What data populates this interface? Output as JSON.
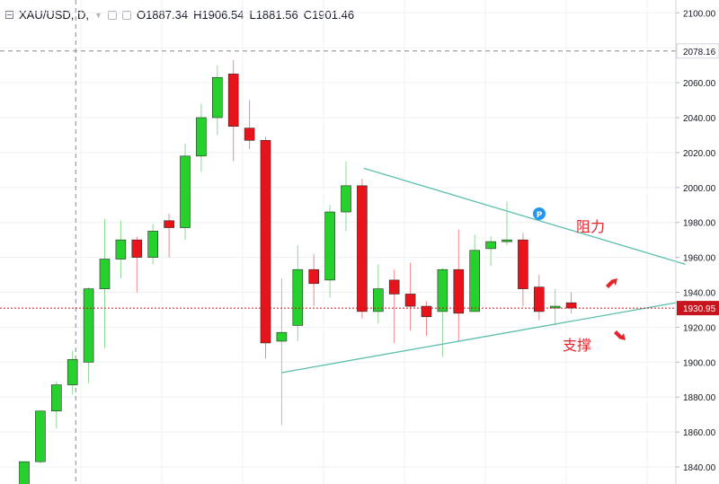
{
  "header": {
    "symbol": "XAU/USD, D,",
    "open_label": "O",
    "open": "1887.34",
    "high_label": "H",
    "high": "1906.54",
    "low_label": "L",
    "low": "1881.56",
    "close_label": "C",
    "close": "1901.46"
  },
  "chart_data": {
    "type": "candlestick",
    "y_range": [
      1830,
      2105
    ],
    "y_ticks": [
      "1840.00",
      "1860.00",
      "1880.00",
      "1900.00",
      "1920.00",
      "1940.00",
      "1960.00",
      "1980.00",
      "2000.00",
      "2020.00",
      "2040.00",
      "2060.00",
      "2080.00",
      "2100.00"
    ],
    "crosshair_price": "2078.16",
    "last_price": "1930.95",
    "colors": {
      "up": "#26d02d",
      "down": "#e8131b",
      "trendline": "#5cbfae",
      "last_price": "#c8141c",
      "annotation": "#e5242c"
    },
    "candles": [
      {
        "o": 1826,
        "h": 1843,
        "l": 1820,
        "c": 1843
      },
      {
        "o": 1843,
        "h": 1872,
        "l": 1842,
        "c": 1872
      },
      {
        "o": 1872,
        "h": 1889,
        "l": 1862,
        "c": 1887
      },
      {
        "o": 1887,
        "h": 1906.5,
        "l": 1881.5,
        "c": 1901.5
      },
      {
        "o": 1900,
        "h": 1943,
        "l": 1888,
        "c": 1942
      },
      {
        "o": 1942,
        "h": 1982,
        "l": 1908,
        "c": 1959
      },
      {
        "o": 1959,
        "h": 1981,
        "l": 1948,
        "c": 1970
      },
      {
        "o": 1970,
        "h": 1972,
        "l": 1940,
        "c": 1960
      },
      {
        "o": 1960,
        "h": 1979,
        "l": 1956,
        "c": 1975
      },
      {
        "o": 1981,
        "h": 1985,
        "l": 1960,
        "c": 1977
      },
      {
        "o": 1977,
        "h": 2025,
        "l": 1970,
        "c": 2018
      },
      {
        "o": 2018,
        "h": 2048,
        "l": 2009,
        "c": 2040
      },
      {
        "o": 2040,
        "h": 2070,
        "l": 2030,
        "c": 2063
      },
      {
        "o": 2065,
        "h": 2073,
        "l": 2015,
        "c": 2035
      },
      {
        "o": 2034,
        "h": 2050,
        "l": 2022,
        "c": 2027
      },
      {
        "o": 2027,
        "h": 2029,
        "l": 1902,
        "c": 1911
      },
      {
        "o": 1912,
        "h": 1948,
        "l": 1864,
        "c": 1917
      },
      {
        "o": 1921,
        "h": 1967,
        "l": 1912,
        "c": 1953
      },
      {
        "o": 1953,
        "h": 1962,
        "l": 1932,
        "c": 1945
      },
      {
        "o": 1947,
        "h": 1990,
        "l": 1937,
        "c": 1986
      },
      {
        "o": 1986,
        "h": 2015,
        "l": 1975,
        "c": 2001
      },
      {
        "o": 2001,
        "h": 2005,
        "l": 1925,
        "c": 1929
      },
      {
        "o": 1929,
        "h": 1956,
        "l": 1922,
        "c": 1942
      },
      {
        "o": 1947,
        "h": 1953,
        "l": 1911,
        "c": 1939
      },
      {
        "o": 1939,
        "h": 1957,
        "l": 1918,
        "c": 1932
      },
      {
        "o": 1932,
        "h": 1935,
        "l": 1915,
        "c": 1926
      },
      {
        "o": 1929,
        "h": 1954,
        "l": 1903,
        "c": 1953
      },
      {
        "o": 1953,
        "h": 1976,
        "l": 1912,
        "c": 1928
      },
      {
        "o": 1929,
        "h": 1973,
        "l": 1929,
        "c": 1964
      },
      {
        "o": 1965,
        "h": 1972,
        "l": 1955,
        "c": 1969
      },
      {
        "o": 1969,
        "h": 1992,
        "l": 1967,
        "c": 1970
      },
      {
        "o": 1970,
        "h": 1974,
        "l": 1932,
        "c": 1942
      },
      {
        "o": 1943,
        "h": 1950,
        "l": 1924,
        "c": 1929
      },
      {
        "o": 1931,
        "h": 1942,
        "l": 1921,
        "c": 1932
      },
      {
        "o": 1934,
        "h": 1940,
        "l": 1928,
        "c": 1931
      }
    ],
    "lines": [
      {
        "name": "resistance",
        "from": {
          "i": 21.1,
          "p": 2011
        },
        "to": {
          "i": 41.1,
          "p": 1956
        }
      },
      {
        "name": "support",
        "from": {
          "i": 16.0,
          "p": 1894
        },
        "to": {
          "i": 41.1,
          "p": 1935
        }
      }
    ],
    "annotations": {
      "resistance_label": "阻力",
      "support_label": "支撑",
      "marker_label": "P"
    }
  }
}
